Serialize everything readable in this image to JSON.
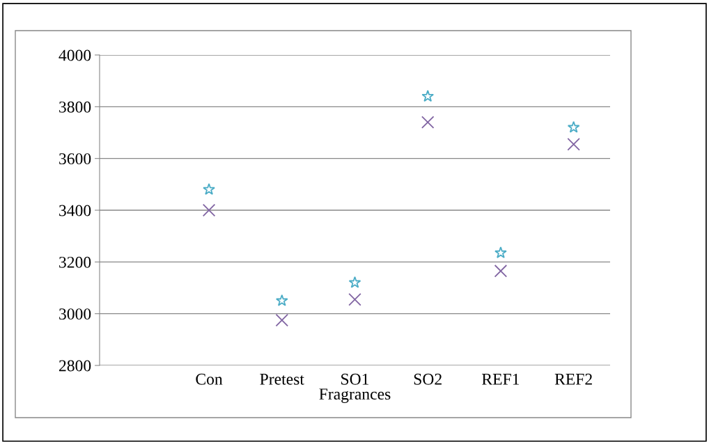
{
  "chart_data": {
    "type": "scatter",
    "xlabel": "Fragrances",
    "categories": [
      null,
      "Con",
      "Pretest",
      "SO1",
      "SO2",
      "REF1",
      "REF2"
    ],
    "series": [
      {
        "color": "#4bacc6",
        "marker": "star",
        "values": [
          null,
          3480,
          3050,
          3120,
          3840,
          3235,
          3720
        ]
      },
      {
        "color": "#8064a2",
        "marker": "cross",
        "values": [
          null,
          3400,
          2975,
          3055,
          3740,
          3165,
          3655
        ]
      }
    ],
    "ylim": [
      2800,
      4000
    ],
    "yticks": [
      2800,
      3000,
      3200,
      3400,
      3600,
      3800,
      4000
    ],
    "grid": "y",
    "legend": false
  }
}
